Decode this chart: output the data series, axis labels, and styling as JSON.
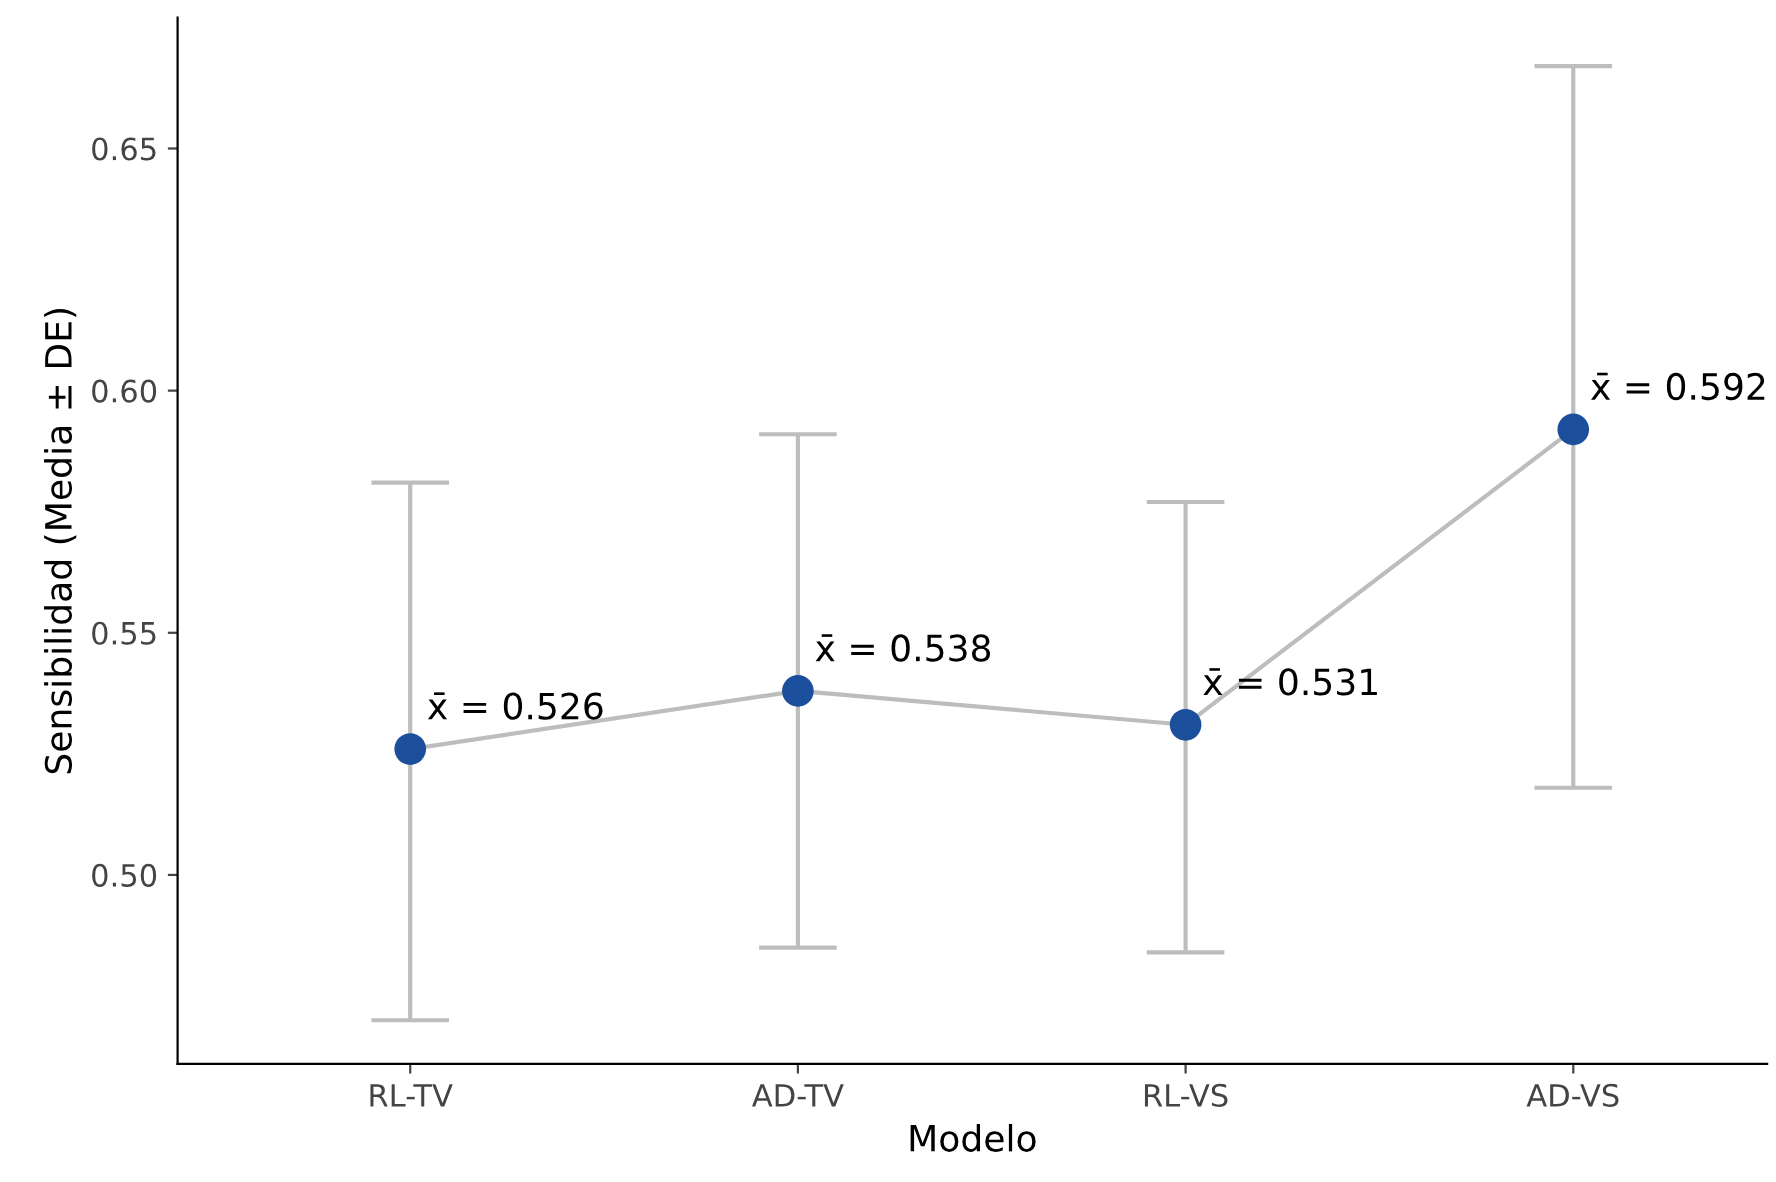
{
  "chart_data": {
    "type": "line",
    "xlabel": "Modelo",
    "ylabel": "Sensibilidad (Media ± DE)",
    "categories": [
      "RL-TV",
      "AD-TV",
      "RL-VS",
      "AD-VS"
    ],
    "series": [
      {
        "color": "#1b4f9c",
        "values": [
          0.526,
          0.538,
          0.531,
          0.592
        ],
        "errors": [
          [
            0.47,
            0.581
          ],
          [
            0.485,
            0.591
          ],
          [
            0.484,
            0.577
          ],
          [
            0.518,
            0.667
          ]
        ],
        "value_labels": [
          "x̄ = 0.526",
          "x̄ = 0.538",
          "x̄ = 0.531",
          "x̄ = 0.592"
        ]
      }
    ],
    "ylim": [
      0.461,
      0.677
    ],
    "yticks": [
      {
        "value": 0.5,
        "label": "0.50"
      },
      0.55,
      {
        "value": 0.6,
        "label": "0.60"
      },
      0.65
    ],
    "marker": "circle",
    "grid": false
  }
}
